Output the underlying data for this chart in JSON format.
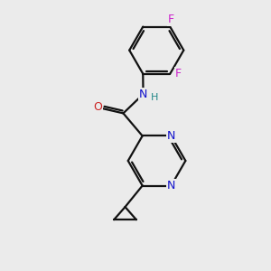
{
  "background_color": "#ebebeb",
  "atom_colors": {
    "N": "#1010cc",
    "O": "#cc2222",
    "F": "#cc22cc",
    "H": "#228888"
  },
  "bond_color": "#111111",
  "bond_width": 1.6,
  "figsize": [
    3.0,
    3.0
  ],
  "dpi": 100
}
